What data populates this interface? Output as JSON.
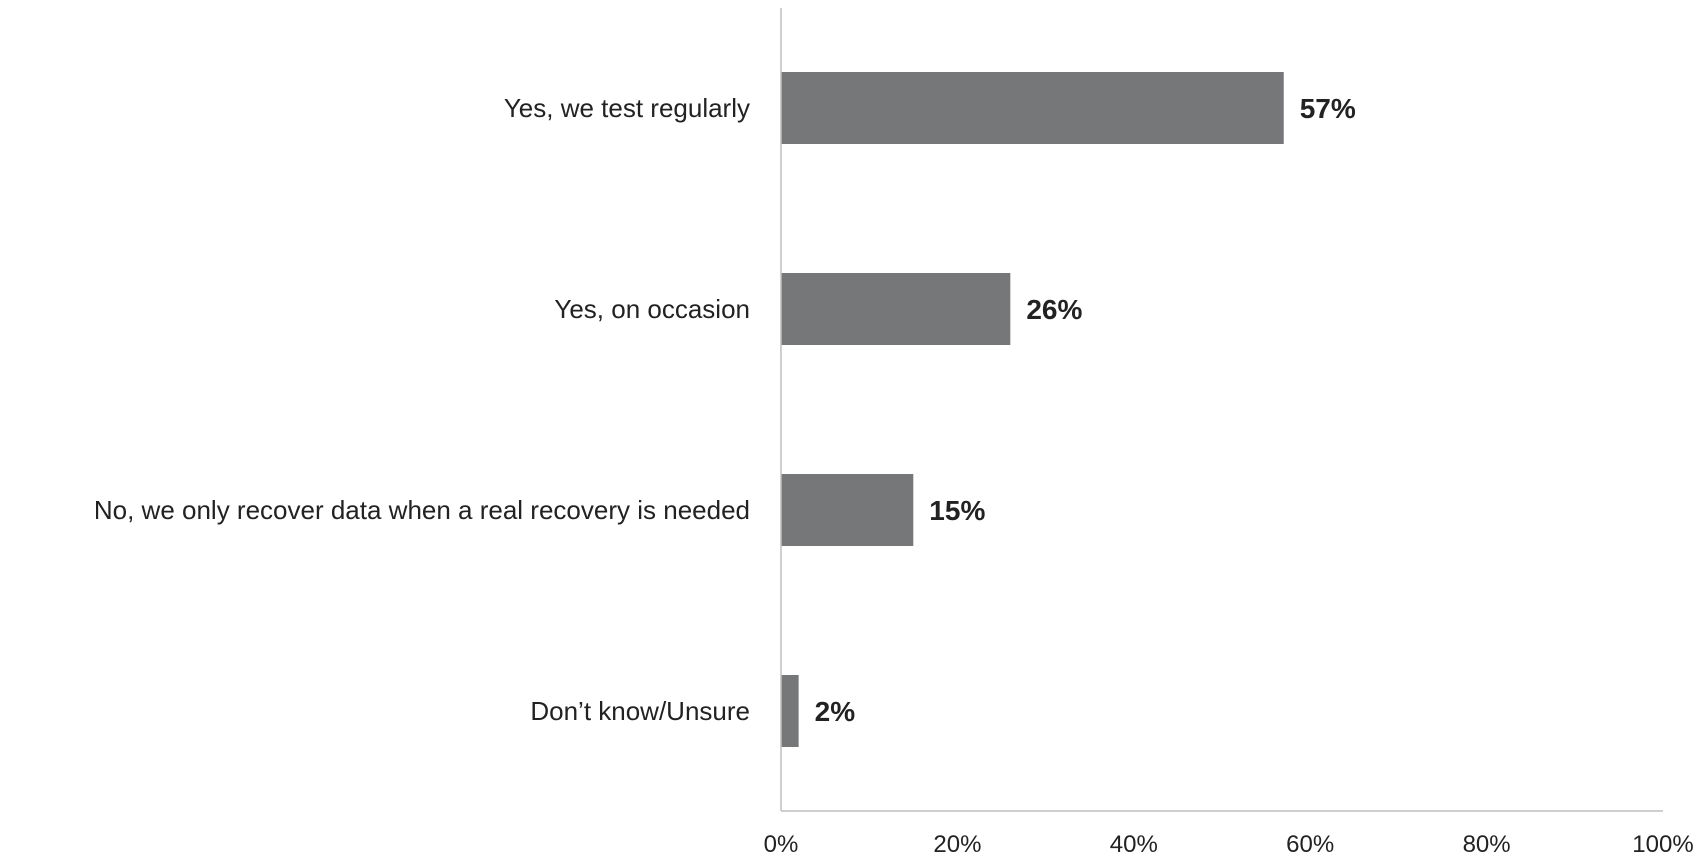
{
  "chart_data": {
    "type": "bar",
    "orientation": "horizontal",
    "categories": [
      "Yes, we test regularly",
      "Yes, on occasion",
      "No, we only recover data when a real recovery is needed",
      "Don’t know/Unsure"
    ],
    "values": [
      57,
      26,
      15,
      2
    ],
    "data_labels": [
      "57%",
      "26%",
      "15%",
      "2%"
    ],
    "x_ticks": [
      "0%",
      "20%",
      "40%",
      "60%",
      "80%",
      "100%"
    ],
    "xlim": [
      0,
      100
    ],
    "title": "",
    "xlabel": "",
    "ylabel": "",
    "grid": false,
    "bar_color": "#767779",
    "axis_color": "#bfbfbf"
  }
}
